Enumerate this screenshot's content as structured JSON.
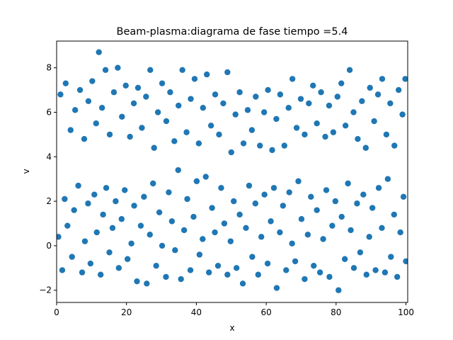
{
  "chart_data": {
    "type": "scatter",
    "title": "Beam-plasma:diagrama de fase  tiempo =5.4",
    "xlabel": "x",
    "ylabel": "v",
    "xlim": [
      0,
      100.5
    ],
    "ylim": [
      -2.55,
      9.2
    ],
    "x_ticks": [
      0,
      20,
      40,
      60,
      80,
      100
    ],
    "y_ticks": [
      -2,
      0,
      2,
      4,
      6,
      8
    ],
    "grid": false,
    "legend": "none",
    "marker_color": "#1f77b4",
    "series": [
      {
        "points": [
          [
            0.5,
            0.4
          ],
          [
            1.6,
            -1.1
          ],
          [
            2.3,
            2.1
          ],
          [
            3.1,
            0.9
          ],
          [
            4.4,
            -0.5
          ],
          [
            5.0,
            1.6
          ],
          [
            6.2,
            2.7
          ],
          [
            7.3,
            -1.2
          ],
          [
            8.1,
            0.2
          ],
          [
            9.0,
            1.9
          ],
          [
            9.7,
            -0.8
          ],
          [
            10.8,
            2.3
          ],
          [
            11.5,
            0.6
          ],
          [
            12.6,
            -1.3
          ],
          [
            13.3,
            1.4
          ],
          [
            14.2,
            2.6
          ],
          [
            15.1,
            -0.3
          ],
          [
            16.0,
            0.8
          ],
          [
            16.9,
            2.0
          ],
          [
            17.8,
            -1.0
          ],
          [
            18.6,
            1.2
          ],
          [
            19.5,
            2.5
          ],
          [
            20.3,
            -0.6
          ],
          [
            21.4,
            0.1
          ],
          [
            22.2,
            1.8
          ],
          [
            23.0,
            -1.6
          ],
          [
            24.1,
            0.9
          ],
          [
            25.0,
            2.2
          ],
          [
            25.8,
            -1.7
          ],
          [
            26.7,
            0.5
          ],
          [
            27.6,
            2.8
          ],
          [
            28.5,
            -0.9
          ],
          [
            29.4,
            1.5
          ],
          [
            30.2,
            0.0
          ],
          [
            31.3,
            -1.4
          ],
          [
            32.1,
            2.4
          ],
          [
            33.0,
            1.1
          ],
          [
            33.9,
            -0.2
          ],
          [
            34.8,
            3.4
          ],
          [
            35.6,
            -1.5
          ],
          [
            36.5,
            0.7
          ],
          [
            37.4,
            2.1
          ],
          [
            38.3,
            -1.1
          ],
          [
            39.2,
            1.3
          ],
          [
            40.1,
            2.9
          ],
          [
            40.9,
            -0.4
          ],
          [
            41.8,
            0.3
          ],
          [
            42.7,
            3.1
          ],
          [
            43.6,
            -1.2
          ],
          [
            44.5,
            1.7
          ],
          [
            45.3,
            0.6
          ],
          [
            46.2,
            -0.9
          ],
          [
            47.1,
            2.6
          ],
          [
            48.0,
            1.0
          ],
          [
            48.9,
            -1.3
          ],
          [
            49.8,
            0.2
          ],
          [
            50.7,
            2.0
          ],
          [
            51.5,
            -1.0
          ],
          [
            52.4,
            1.4
          ],
          [
            53.3,
            -1.7
          ],
          [
            54.2,
            0.8
          ],
          [
            55.1,
            2.7
          ],
          [
            56.0,
            -0.5
          ],
          [
            56.9,
            1.9
          ],
          [
            57.7,
            -1.3
          ],
          [
            58.6,
            0.4
          ],
          [
            59.5,
            2.3
          ],
          [
            60.4,
            -0.8
          ],
          [
            61.3,
            1.1
          ],
          [
            62.2,
            2.6
          ],
          [
            63.0,
            -1.9
          ],
          [
            63.9,
            0.6
          ],
          [
            64.8,
            1.8
          ],
          [
            65.7,
            -1.1
          ],
          [
            66.6,
            2.4
          ],
          [
            67.4,
            0.1
          ],
          [
            68.3,
            -0.7
          ],
          [
            69.2,
            2.9
          ],
          [
            70.1,
            1.2
          ],
          [
            71.0,
            -1.5
          ],
          [
            71.9,
            0.5
          ],
          [
            72.8,
            2.2
          ],
          [
            73.6,
            -0.9
          ],
          [
            74.5,
            1.6
          ],
          [
            75.4,
            -1.2
          ],
          [
            76.3,
            0.3
          ],
          [
            77.2,
            2.5
          ],
          [
            78.1,
            -1.4
          ],
          [
            78.9,
            0.9
          ],
          [
            79.8,
            2.0
          ],
          [
            80.7,
            -2.0
          ],
          [
            81.6,
            1.3
          ],
          [
            82.5,
            -0.6
          ],
          [
            83.4,
            2.8
          ],
          [
            84.2,
            0.7
          ],
          [
            85.1,
            -1.0
          ],
          [
            86.0,
            1.9
          ],
          [
            86.9,
            -0.3
          ],
          [
            87.8,
            2.3
          ],
          [
            88.7,
            -1.3
          ],
          [
            89.5,
            0.4
          ],
          [
            90.4,
            1.7
          ],
          [
            91.3,
            -1.1
          ],
          [
            92.2,
            2.6
          ],
          [
            93.1,
            0.8
          ],
          [
            94.0,
            -1.2
          ],
          [
            94.8,
            3.0
          ],
          [
            95.7,
            -0.5
          ],
          [
            96.6,
            1.4
          ],
          [
            97.5,
            -1.4
          ],
          [
            98.4,
            0.6
          ],
          [
            99.3,
            2.2
          ],
          [
            100.0,
            -0.7
          ],
          [
            1.1,
            6.8
          ],
          [
            2.6,
            7.3
          ],
          [
            4.0,
            5.2
          ],
          [
            5.3,
            6.1
          ],
          [
            6.7,
            7.0
          ],
          [
            7.9,
            4.8
          ],
          [
            9.1,
            6.5
          ],
          [
            10.2,
            7.4
          ],
          [
            11.3,
            5.5
          ],
          [
            12.1,
            8.7
          ],
          [
            13.0,
            6.2
          ],
          [
            14.0,
            7.9
          ],
          [
            15.2,
            5.0
          ],
          [
            16.4,
            6.9
          ],
          [
            17.5,
            8.0
          ],
          [
            18.7,
            5.8
          ],
          [
            19.8,
            7.2
          ],
          [
            21.0,
            4.9
          ],
          [
            22.1,
            6.4
          ],
          [
            23.3,
            7.1
          ],
          [
            24.4,
            5.3
          ],
          [
            25.6,
            6.7
          ],
          [
            26.8,
            7.9
          ],
          [
            27.9,
            4.4
          ],
          [
            29.0,
            6.0
          ],
          [
            30.2,
            7.3
          ],
          [
            31.4,
            5.6
          ],
          [
            32.5,
            6.9
          ],
          [
            33.7,
            4.7
          ],
          [
            34.9,
            6.3
          ],
          [
            36.0,
            7.9
          ],
          [
            37.2,
            5.1
          ],
          [
            38.4,
            6.6
          ],
          [
            39.5,
            7.5
          ],
          [
            40.7,
            4.6
          ],
          [
            41.9,
            6.2
          ],
          [
            43.0,
            7.7
          ],
          [
            44.2,
            5.4
          ],
          [
            45.4,
            6.8
          ],
          [
            46.5,
            5.0
          ],
          [
            47.7,
            6.4
          ],
          [
            48.9,
            7.8
          ],
          [
            50.0,
            4.2
          ],
          [
            51.2,
            5.9
          ],
          [
            52.4,
            6.9
          ],
          [
            53.5,
            4.6
          ],
          [
            54.7,
            6.1
          ],
          [
            55.9,
            5.2
          ],
          [
            57.0,
            6.7
          ],
          [
            58.2,
            4.5
          ],
          [
            59.4,
            6.0
          ],
          [
            60.5,
            7.0
          ],
          [
            61.7,
            4.3
          ],
          [
            62.9,
            5.7
          ],
          [
            64.0,
            6.8
          ],
          [
            65.2,
            4.5
          ],
          [
            66.4,
            6.2
          ],
          [
            67.5,
            7.5
          ],
          [
            68.7,
            5.3
          ],
          [
            69.9,
            6.6
          ],
          [
            71.0,
            5.0
          ],
          [
            72.2,
            6.4
          ],
          [
            73.4,
            7.2
          ],
          [
            74.5,
            5.5
          ],
          [
            75.7,
            6.9
          ],
          [
            76.9,
            4.9
          ],
          [
            78.0,
            6.3
          ],
          [
            79.2,
            5.1
          ],
          [
            80.4,
            6.7
          ],
          [
            81.5,
            7.3
          ],
          [
            82.7,
            5.4
          ],
          [
            83.9,
            7.9
          ],
          [
            85.0,
            6.0
          ],
          [
            86.2,
            4.8
          ],
          [
            87.4,
            6.5
          ],
          [
            88.5,
            4.4
          ],
          [
            89.7,
            7.1
          ],
          [
            90.9,
            5.6
          ],
          [
            92.0,
            6.8
          ],
          [
            93.2,
            7.5
          ],
          [
            94.4,
            5.0
          ],
          [
            95.5,
            6.4
          ],
          [
            96.7,
            4.5
          ],
          [
            97.9,
            7.0
          ],
          [
            99.0,
            5.9
          ],
          [
            99.8,
            7.5
          ]
        ]
      }
    ]
  }
}
